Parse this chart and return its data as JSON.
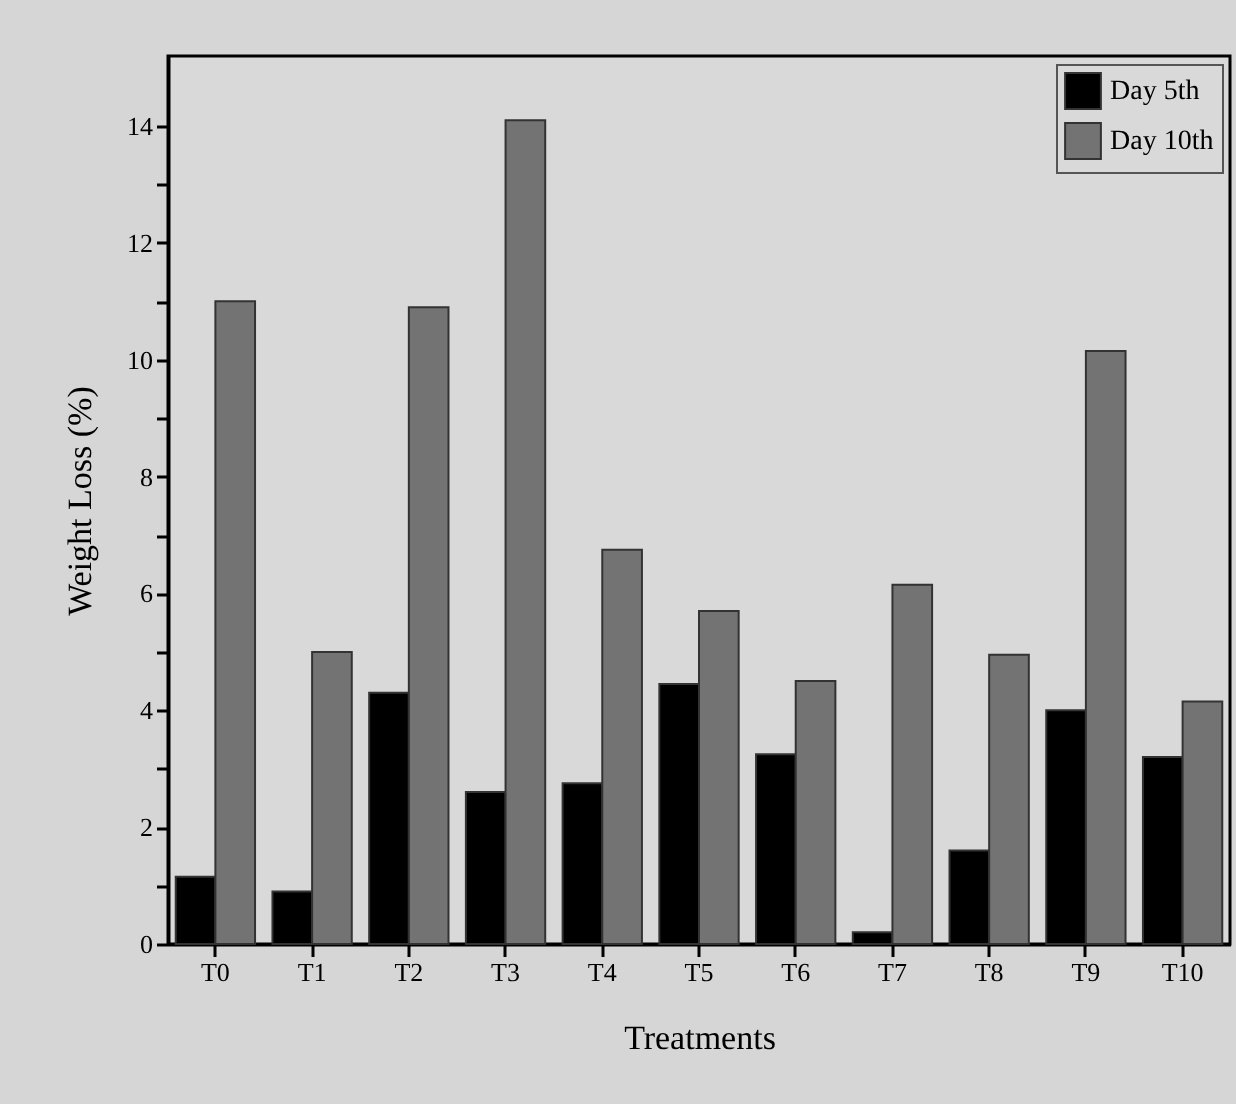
{
  "chart_data": {
    "type": "bar",
    "xlabel": "Treatments",
    "ylabel": "Weight Loss (%)",
    "categories": [
      "T0",
      "T1",
      "T2",
      "T3",
      "T4",
      "T5",
      "T6",
      "T7",
      "T8",
      "T9",
      "T10"
    ],
    "series": [
      {
        "name": "Day 5th",
        "color": "#000000",
        "values": [
          1.15,
          0.9,
          4.3,
          2.6,
          2.75,
          4.45,
          3.25,
          0.2,
          1.6,
          4.0,
          3.2
        ]
      },
      {
        "name": "Day 10th",
        "color": "#737373",
        "values": [
          11.0,
          5.0,
          10.9,
          14.1,
          6.75,
          5.7,
          4.5,
          6.15,
          4.95,
          10.15,
          4.15
        ]
      }
    ],
    "ylim": [
      0,
      15.2
    ],
    "yticks": [
      0,
      {
        "value": 1,
        "label": null
      },
      2,
      {
        "value": 3,
        "label": null
      },
      4,
      {
        "value": 5,
        "label": null
      },
      6,
      {
        "value": 7,
        "label": null
      },
      8,
      {
        "value": 9,
        "label": null
      },
      10,
      {
        "value": 11,
        "label": null
      },
      12,
      {
        "value": 13,
        "label": null
      },
      14
    ],
    "legend": "top right",
    "grid": false
  }
}
